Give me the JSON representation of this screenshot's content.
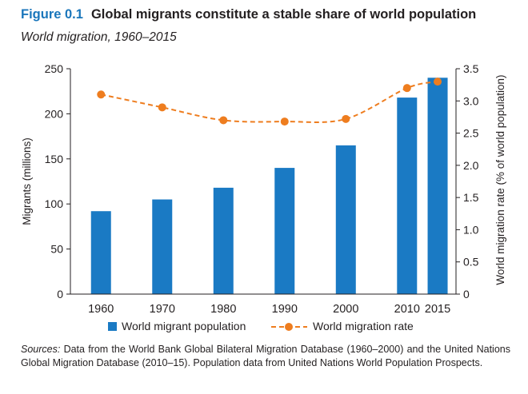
{
  "figure": {
    "label": "Figure 0.1",
    "title": "Global migrants constitute a stable share of world population",
    "subtitle": "World migration, 1960–2015"
  },
  "sources": {
    "label": "Sources:",
    "text": "Data from the World Bank Global Bilateral Migration Database (1960–2000) and the United Nations Global Migration Database (2010–15). Population data from United Nations World Population Prospects."
  },
  "chart_data": {
    "type": "bar",
    "categories": [
      "1960",
      "1970",
      "1980",
      "1990",
      "2000",
      "2010",
      "2015"
    ],
    "x": [
      1960,
      1970,
      1980,
      1990,
      2000,
      2010,
      2015
    ],
    "series": [
      {
        "name": "World migrant population",
        "type": "bar",
        "axis": "left",
        "color": "#1a7ac4",
        "values": [
          92,
          105,
          118,
          140,
          165,
          218,
          240
        ]
      },
      {
        "name": "World migration rate",
        "type": "line",
        "axis": "right",
        "color": "#ee7d1f",
        "line_style": "dashed",
        "values": [
          3.1,
          2.9,
          2.7,
          2.68,
          2.72,
          3.2,
          3.3
        ]
      }
    ],
    "ylabel": "Migrants (millions)",
    "y2label": "World migration rate (% of world population)",
    "ylim": [
      0,
      250
    ],
    "y2lim": [
      0,
      3.5
    ],
    "yticks": [
      0,
      50,
      100,
      150,
      200,
      250
    ],
    "y2ticks": [
      "0",
      "0.5",
      "1.0",
      "1.5",
      "2.0",
      "2.5",
      "3.0",
      "3.5"
    ],
    "grid": false,
    "legend_position": "bottom"
  }
}
